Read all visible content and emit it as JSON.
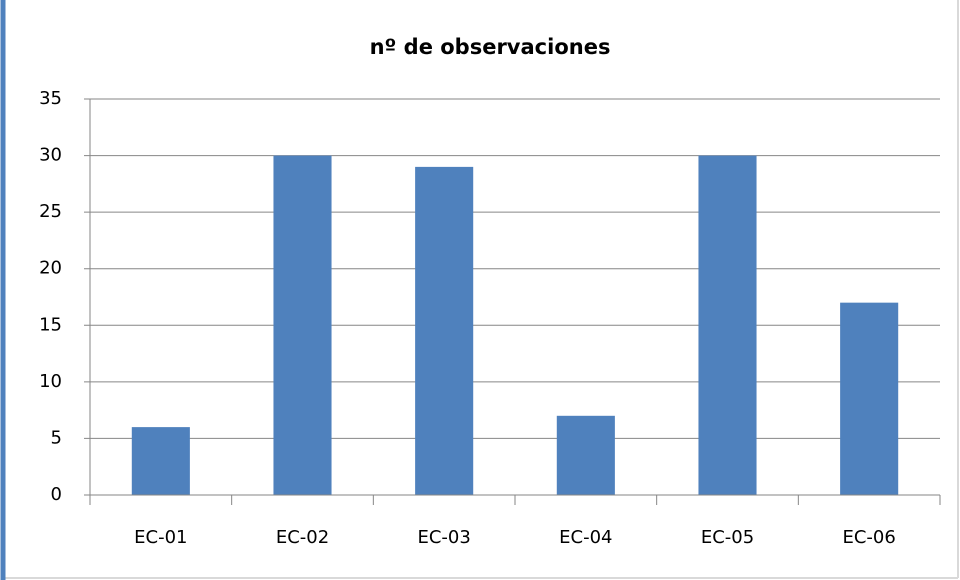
{
  "chart_data": {
    "type": "bar",
    "title": "nº de observaciones",
    "categories": [
      "EC-01",
      "EC-02",
      "EC-03",
      "EC-04",
      "EC-05",
      "EC-06"
    ],
    "values": [
      6,
      30,
      29,
      7,
      30,
      17
    ],
    "color": "#4f81bd",
    "ylim": [
      0,
      35
    ],
    "yticks": [
      0,
      5,
      10,
      15,
      20,
      25,
      30,
      35
    ],
    "grid": true
  }
}
